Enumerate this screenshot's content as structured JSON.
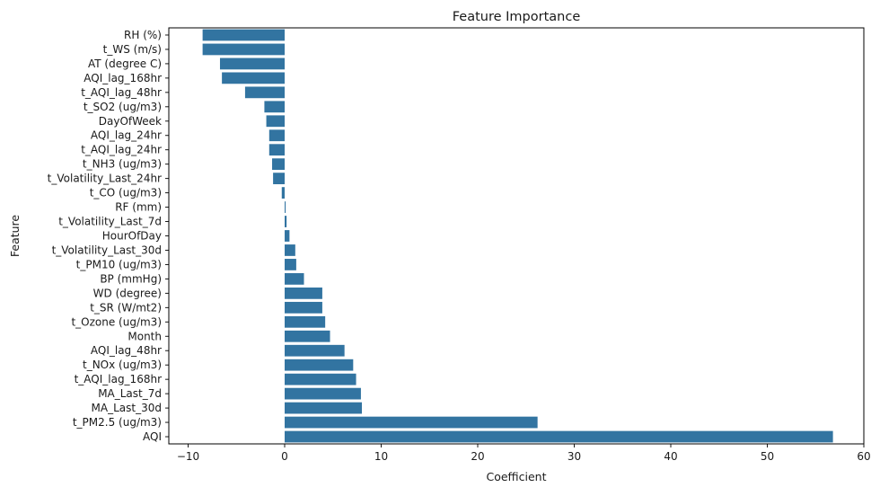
{
  "chart_data": {
    "type": "bar",
    "orientation": "horizontal",
    "title": "Feature Importance",
    "xlabel": "Coefficient",
    "ylabel": "Feature",
    "xlim": [
      -12,
      60
    ],
    "xticks": [
      -10,
      0,
      10,
      20,
      30,
      40,
      50,
      60
    ],
    "bar_color": "#3274a1",
    "grid": false,
    "categories": [
      "RH (%)",
      "t_WS (m/s)",
      "AT (degree C)",
      "AQI_lag_168hr",
      "t_AQI_lag_48hr",
      "t_SO2 (ug/m3)",
      "DayOfWeek",
      "AQI_lag_24hr",
      "t_AQI_lag_24hr",
      "t_NH3 (ug/m3)",
      "t_Volatility_Last_24hr",
      "t_CO (ug/m3)",
      "RF (mm)",
      "t_Volatility_Last_7d",
      "HourOfDay",
      "t_Volatility_Last_30d",
      "t_PM10 (ug/m3)",
      "BP (mmHg)",
      "WD (degree)",
      "t_SR (W/mt2)",
      "t_Ozone (ug/m3)",
      "Month",
      "AQI_lag_48hr",
      "t_NOx (ug/m3)",
      "t_AQI_lag_168hr",
      "MA_Last_7d",
      "MA_Last_30d",
      "t_PM2.5 (ug/m3)",
      "AQI"
    ],
    "values": [
      -8.5,
      -8.5,
      -6.7,
      -6.5,
      -4.1,
      -2.1,
      -1.9,
      -1.6,
      -1.6,
      -1.3,
      -1.2,
      -0.3,
      0.1,
      0.2,
      0.5,
      1.1,
      1.2,
      2.0,
      3.9,
      3.9,
      4.2,
      4.7,
      6.2,
      7.1,
      7.4,
      7.9,
      8.0,
      26.2,
      56.8
    ]
  }
}
